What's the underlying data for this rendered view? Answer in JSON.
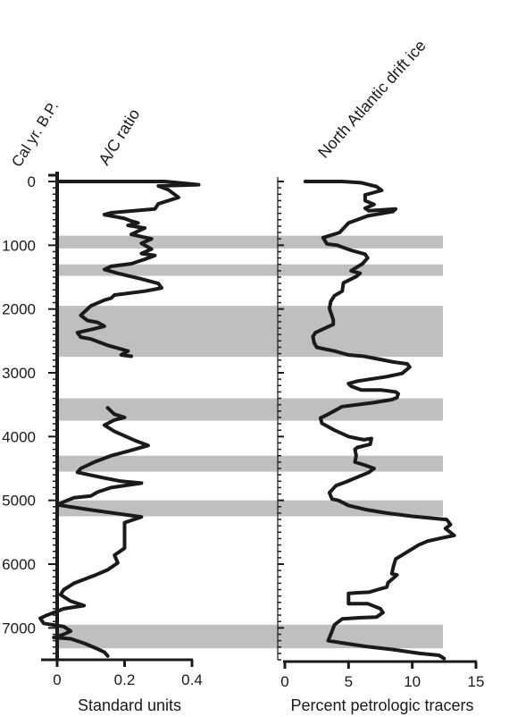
{
  "chart_data": {
    "type": "line",
    "y_axis": {
      "label": "Cal yr. B.P.",
      "range": [
        0,
        7500
      ],
      "ticks": [
        0,
        1000,
        2000,
        3000,
        4000,
        5000,
        6000,
        7000
      ],
      "tick_labels": [
        "0",
        "1000",
        "2000",
        "3000",
        "4000",
        "5000",
        "6000",
        "7000"
      ],
      "minor_step": 100,
      "inverted": true
    },
    "shaded_bands": [
      [
        850,
        1050
      ],
      [
        1300,
        1480
      ],
      [
        1950,
        2750
      ],
      [
        3400,
        3750
      ],
      [
        4300,
        4550
      ],
      [
        5000,
        5250
      ],
      [
        6950,
        7320
      ]
    ],
    "band_color": "#bfbfbf",
    "line_color": "#1a1a1a",
    "panels": [
      {
        "title": "A/C ratio",
        "xlabel": "Standard units",
        "xlim": [
          0,
          0.4
        ],
        "xticks": [
          0,
          0.2,
          0.4
        ],
        "xtick_labels": [
          "0",
          "0.2",
          "0.4"
        ],
        "series": {
          "segments": [
            [
              [
                0,
                0
              ],
              [
                0.25,
                0
              ],
              [
                0.32,
                0
              ],
              [
                0.42,
                50
              ],
              [
                0.3,
                70
              ],
              [
                0.33,
                130
              ],
              [
                0.36,
                250
              ],
              [
                0.3,
                350
              ],
              [
                0.29,
                430
              ],
              [
                0.16,
                490
              ],
              [
                0.14,
                520
              ],
              [
                0.2,
                580
              ],
              [
                0.22,
                620
              ],
              [
                0.24,
                650
              ],
              [
                0.21,
                690
              ],
              [
                0.26,
                730
              ],
              [
                0.24,
                780
              ],
              [
                0.22,
                830
              ],
              [
                0.28,
                900
              ],
              [
                0.25,
                970
              ],
              [
                0.28,
                1060
              ],
              [
                0.25,
                1130
              ],
              [
                0.29,
                1160
              ],
              [
                0.26,
                1220
              ],
              [
                0.22,
                1290
              ],
              [
                0.16,
                1330
              ],
              [
                0.14,
                1380
              ],
              [
                0.18,
                1440
              ],
              [
                0.25,
                1530
              ],
              [
                0.3,
                1600
              ],
              [
                0.31,
                1670
              ],
              [
                0.26,
                1720
              ],
              [
                0.17,
                1780
              ],
              [
                0.16,
                1830
              ],
              [
                0.14,
                1860
              ],
              [
                0.1,
                1950
              ],
              [
                0.08,
                2050
              ],
              [
                0.07,
                2100
              ],
              [
                0.09,
                2180
              ],
              [
                0.12,
                2210
              ],
              [
                0.14,
                2270
              ],
              [
                0.11,
                2310
              ],
              [
                0.06,
                2370
              ],
              [
                0.07,
                2440
              ],
              [
                0.1,
                2470
              ],
              [
                0.15,
                2570
              ],
              [
                0.21,
                2660
              ],
              [
                0.19,
                2720
              ],
              [
                0.22,
                2740
              ]
            ],
            [
              [
                0.15,
                3550
              ],
              [
                0.17,
                3650
              ],
              [
                0.2,
                3700
              ],
              [
                0.17,
                3740
              ],
              [
                0.14,
                3820
              ],
              [
                0.17,
                3920
              ],
              [
                0.23,
                4060
              ],
              [
                0.27,
                4140
              ],
              [
                0.21,
                4230
              ],
              [
                0.16,
                4300
              ],
              [
                0.11,
                4400
              ],
              [
                0.07,
                4500
              ],
              [
                0.06,
                4560
              ],
              [
                0.14,
                4650
              ],
              [
                0.19,
                4700
              ],
              [
                0.25,
                4730
              ],
              [
                0.16,
                4800
              ],
              [
                0.12,
                4870
              ],
              [
                0.1,
                4930
              ],
              [
                0.05,
                4960
              ],
              [
                0.03,
                5000
              ],
              [
                0.0,
                5070
              ],
              [
                0.1,
                5150
              ],
              [
                0.21,
                5230
              ],
              [
                0.25,
                5260
              ],
              [
                0.2,
                5350
              ],
              [
                0.2,
                5500
              ],
              [
                0.2,
                5600
              ],
              [
                0.2,
                5750
              ],
              [
                0.17,
                5860
              ],
              [
                0.18,
                5980
              ],
              [
                0.15,
                6090
              ],
              [
                0.11,
                6180
              ],
              [
                0.05,
                6300
              ],
              [
                0.02,
                6400
              ],
              [
                0.01,
                6480
              ],
              [
                0.04,
                6580
              ],
              [
                0.08,
                6650
              ],
              [
                0.02,
                6700
              ],
              [
                -0.03,
                6800
              ],
              [
                -0.05,
                6850
              ],
              [
                -0.04,
                6930
              ],
              [
                0.02,
                6980
              ],
              [
                0.04,
                7050
              ],
              [
                0.02,
                7100
              ],
              [
                -0.01,
                7150
              ],
              [
                0.04,
                7170
              ],
              [
                0.08,
                7240
              ],
              [
                0.12,
                7330
              ],
              [
                0.14,
                7380
              ],
              [
                0.15,
                7440
              ]
            ]
          ]
        }
      },
      {
        "title": "North Atlantic drift ice",
        "xlabel": "Percent petrologic tracers",
        "xlim": [
          0,
          15
        ],
        "xticks": [
          0,
          5,
          10,
          15
        ],
        "xtick_labels": [
          "0",
          "5",
          "10",
          "15"
        ],
        "series": {
          "segments": [
            [
              [
                1.6,
                0
              ],
              [
                4.5,
                0
              ],
              [
                6.0,
                20
              ],
              [
                7.2,
                80
              ],
              [
                7.6,
                140
              ],
              [
                6.3,
                210
              ],
              [
                6.3,
                300
              ],
              [
                7.0,
                360
              ],
              [
                6.3,
                420
              ],
              [
                6.6,
                460
              ],
              [
                8.7,
                430
              ],
              [
                8.5,
                470
              ],
              [
                6.5,
                540
              ],
              [
                5.0,
                650
              ],
              [
                4.3,
                800
              ],
              [
                3.0,
                880
              ],
              [
                3.3,
                980
              ],
              [
                4.1,
                1000
              ],
              [
                5.2,
                1080
              ],
              [
                6.3,
                1140
              ],
              [
                6.5,
                1200
              ],
              [
                6.1,
                1290
              ],
              [
                5.6,
                1350
              ],
              [
                5.2,
                1400
              ],
              [
                5.9,
                1440
              ],
              [
                5.6,
                1490
              ],
              [
                4.6,
                1590
              ],
              [
                4.5,
                1720
              ],
              [
                3.9,
                1790
              ],
              [
                3.6,
                1880
              ],
              [
                3.5,
                1990
              ],
              [
                3.8,
                2170
              ],
              [
                3.8,
                2240
              ],
              [
                2.4,
                2370
              ],
              [
                2.2,
                2430
              ],
              [
                2.3,
                2530
              ],
              [
                2.5,
                2600
              ],
              [
                3.9,
                2660
              ],
              [
                5.0,
                2720
              ],
              [
                6.2,
                2740
              ],
              [
                8.5,
                2830
              ],
              [
                9.6,
                2860
              ],
              [
                9.8,
                2910
              ],
              [
                9.2,
                3010
              ],
              [
                8.0,
                3060
              ],
              [
                5.7,
                3130
              ],
              [
                5.0,
                3170
              ],
              [
                5.2,
                3210
              ],
              [
                6.0,
                3270
              ],
              [
                7.6,
                3270
              ],
              [
                8.7,
                3300
              ],
              [
                8.9,
                3330
              ],
              [
                8.8,
                3390
              ],
              [
                8.4,
                3420
              ],
              [
                6.9,
                3470
              ],
              [
                4.5,
                3530
              ],
              [
                3.3,
                3660
              ],
              [
                2.8,
                3710
              ],
              [
                2.9,
                3790
              ],
              [
                3.9,
                3900
              ],
              [
                5.0,
                4000
              ],
              [
                5.7,
                4030
              ],
              [
                6.2,
                4050
              ],
              [
                6.8,
                4030
              ],
              [
                6.7,
                4120
              ],
              [
                5.7,
                4170
              ],
              [
                5.5,
                4200
              ],
              [
                5.6,
                4300
              ],
              [
                5.5,
                4400
              ],
              [
                6.3,
                4450
              ],
              [
                7.0,
                4500
              ],
              [
                6.6,
                4560
              ],
              [
                4.8,
                4710
              ],
              [
                4.0,
                4770
              ],
              [
                3.5,
                4880
              ],
              [
                3.7,
                4980
              ],
              [
                4.2,
                5000
              ],
              [
                5.0,
                5080
              ],
              [
                6.5,
                5150
              ],
              [
                8.0,
                5200
              ],
              [
                10.0,
                5250
              ],
              [
                12.1,
                5290
              ],
              [
                12.7,
                5300
              ],
              [
                13.0,
                5380
              ],
              [
                12.6,
                5440
              ],
              [
                13.3,
                5550
              ],
              [
                12.3,
                5590
              ],
              [
                11.2,
                5640
              ],
              [
                10.5,
                5700
              ],
              [
                8.7,
                5920
              ],
              [
                8.5,
                6050
              ],
              [
                8.4,
                6150
              ],
              [
                8.8,
                6170
              ],
              [
                8.1,
                6290
              ],
              [
                8.0,
                6360
              ],
              [
                7.3,
                6400
              ],
              [
                6.6,
                6440
              ],
              [
                5.6,
                6450
              ],
              [
                5.0,
                6460
              ],
              [
                5.0,
                6620
              ],
              [
                6.5,
                6620
              ],
              [
                7.5,
                6700
              ],
              [
                7.7,
                6760
              ],
              [
                7.2,
                6830
              ],
              [
                6.0,
                6840
              ],
              [
                4.5,
                6860
              ],
              [
                3.9,
                6950
              ],
              [
                3.6,
                7100
              ],
              [
                3.4,
                7200
              ],
              [
                4.3,
                7230
              ],
              [
                6.3,
                7290
              ],
              [
                8.5,
                7340
              ],
              [
                10.6,
                7400
              ],
              [
                12.1,
                7430
              ],
              [
                12.5,
                7480
              ]
            ]
          ]
        }
      }
    ]
  }
}
